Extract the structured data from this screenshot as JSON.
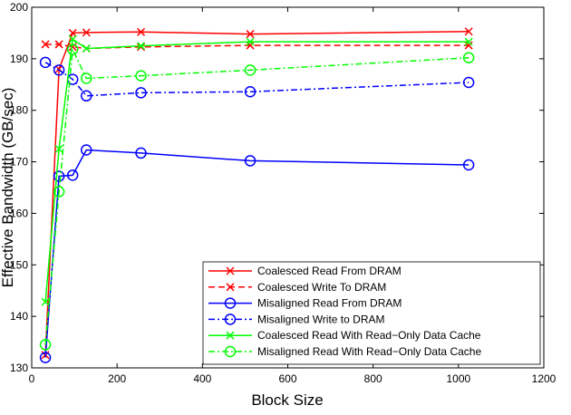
{
  "chart_data": {
    "type": "line",
    "xlabel": "Block Size",
    "ylabel": "Effective Bandwidth (GB/sec)",
    "xlim": [
      0,
      1200
    ],
    "ylim": [
      130,
      200
    ],
    "xticks": [
      0,
      200,
      400,
      600,
      800,
      1000,
      1200
    ],
    "yticks": [
      130,
      140,
      150,
      160,
      170,
      180,
      190,
      200
    ],
    "grid": false,
    "legend_position": "bottom-right",
    "series": [
      {
        "name": "Coalesced Read From DRAM",
        "color": "#ff0000",
        "dash": "solid",
        "marker": "x",
        "x": [
          32,
          64,
          96,
          128,
          256,
          512,
          1024
        ],
        "y": [
          132.5,
          188.0,
          195.0,
          195.1,
          195.2,
          194.8,
          195.3
        ]
      },
      {
        "name": "Coalesced Write To DRAM",
        "color": "#ff0000",
        "dash": "dashed",
        "marker": "x",
        "x": [
          32,
          64,
          96,
          128,
          256,
          512,
          1024
        ],
        "y": [
          192.8,
          192.8,
          192.3,
          192.0,
          192.3,
          192.6,
          192.6
        ]
      },
      {
        "name": "Misaligned Read From DRAM",
        "color": "#0000ff",
        "dash": "solid",
        "marker": "o",
        "x": [
          32,
          64,
          96,
          128,
          256,
          512,
          1024
        ],
        "y": [
          132.0,
          167.2,
          167.4,
          172.3,
          171.7,
          170.2,
          169.4
        ]
      },
      {
        "name": "Misaligned Write to DRAM",
        "color": "#0000ff",
        "dash": "dashdot",
        "marker": "o",
        "x": [
          32,
          64,
          96,
          128,
          256,
          512,
          1024
        ],
        "y": [
          189.3,
          187.8,
          186.0,
          182.8,
          183.4,
          183.6,
          185.4
        ]
      },
      {
        "name": "Coalesced Read With Read−Only Data Cache",
        "color": "#00ff00",
        "dash": "solid",
        "marker": "x",
        "x": [
          32,
          64,
          96,
          128,
          256,
          512,
          1024
        ],
        "y": [
          142.8,
          172.5,
          193.8,
          192.0,
          192.5,
          193.3,
          193.3
        ]
      },
      {
        "name": "Misaligned Read With Read−Only Data Cache",
        "color": "#00ff00",
        "dash": "dashdot",
        "marker": "o",
        "x": [
          32,
          64,
          96,
          128,
          256,
          512,
          1024
        ],
        "y": [
          134.5,
          164.2,
          191.8,
          186.2,
          186.7,
          187.8,
          190.2
        ]
      }
    ]
  }
}
